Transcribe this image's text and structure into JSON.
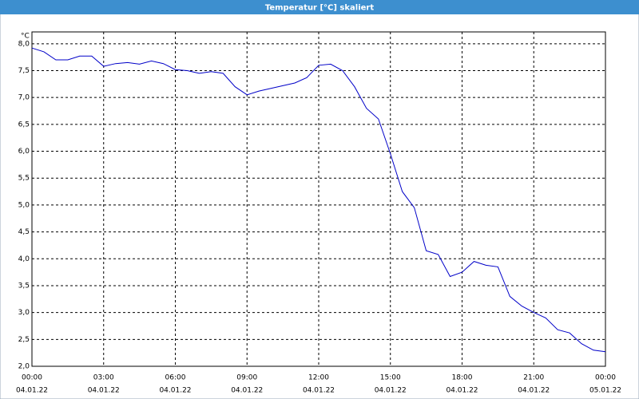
{
  "window_title": "Temperatur [°C] skaliert",
  "chart_data": {
    "type": "line",
    "y_unit": "°C",
    "x": [
      0,
      0.5,
      1,
      1.5,
      2,
      2.5,
      3,
      3.5,
      4,
      4.5,
      5,
      5.5,
      6,
      6.5,
      7,
      7.5,
      8,
      8.5,
      9,
      9.5,
      10,
      10.5,
      11,
      11.5,
      12,
      12.5,
      13,
      13.5,
      14,
      14.5,
      15,
      15.5,
      16,
      16.5,
      17,
      17.5,
      18,
      18.5,
      19,
      19.5,
      20,
      20.5,
      21,
      21.5,
      22,
      22.5,
      23,
      23.5,
      24
    ],
    "series": [
      {
        "color": "#0000c8",
        "values": [
          7.92,
          7.85,
          7.7,
          7.7,
          7.77,
          7.77,
          7.58,
          7.63,
          7.65,
          7.62,
          7.68,
          7.63,
          7.52,
          7.5,
          7.45,
          7.48,
          7.45,
          7.2,
          7.05,
          7.12,
          7.17,
          7.22,
          7.27,
          7.37,
          7.6,
          7.62,
          7.5,
          7.2,
          6.8,
          6.6,
          5.95,
          5.25,
          4.95,
          4.15,
          4.08,
          3.67,
          3.75,
          3.95,
          3.88,
          3.85,
          3.3,
          3.12,
          3.0,
          2.9,
          2.68,
          2.62,
          2.42,
          2.3,
          2.27
        ]
      }
    ],
    "xlim": [
      0,
      24
    ],
    "xticks": [
      {
        "value": 0,
        "label": "00:00",
        "date": "04.01.22"
      },
      {
        "value": 3,
        "label": "03:00",
        "date": "04.01.22"
      },
      {
        "value": 6,
        "label": "06:00",
        "date": "04.01.22"
      },
      {
        "value": 9,
        "label": "09:00",
        "date": "04.01.22"
      },
      {
        "value": 12,
        "label": "12:00",
        "date": "04.01.22"
      },
      {
        "value": 15,
        "label": "15:00",
        "date": "04.01.22"
      },
      {
        "value": 18,
        "label": "18:00",
        "date": "04.01.22"
      },
      {
        "value": 21,
        "label": "21:00",
        "date": "04.01.22"
      },
      {
        "value": 24,
        "label": "00:00",
        "date": "05.01.22"
      }
    ],
    "ylim": [
      2.0,
      8.22
    ],
    "yticks": [
      {
        "value": 2.0,
        "label": "2,0"
      },
      {
        "value": 2.5,
        "label": "2,5"
      },
      {
        "value": 3.0,
        "label": "3,0"
      },
      {
        "value": 3.5,
        "label": "3,5"
      },
      {
        "value": 4.0,
        "label": "4,0"
      },
      {
        "value": 4.5,
        "label": "4,5"
      },
      {
        "value": 5.0,
        "label": "5,0"
      },
      {
        "value": 5.5,
        "label": "5,5"
      },
      {
        "value": 6.0,
        "label": "6,0"
      },
      {
        "value": 6.5,
        "label": "6,5"
      },
      {
        "value": 7.0,
        "label": "7,0"
      },
      {
        "value": 7.5,
        "label": "7,5"
      },
      {
        "value": 8.0,
        "label": "8,0"
      }
    ],
    "grid": true
  }
}
